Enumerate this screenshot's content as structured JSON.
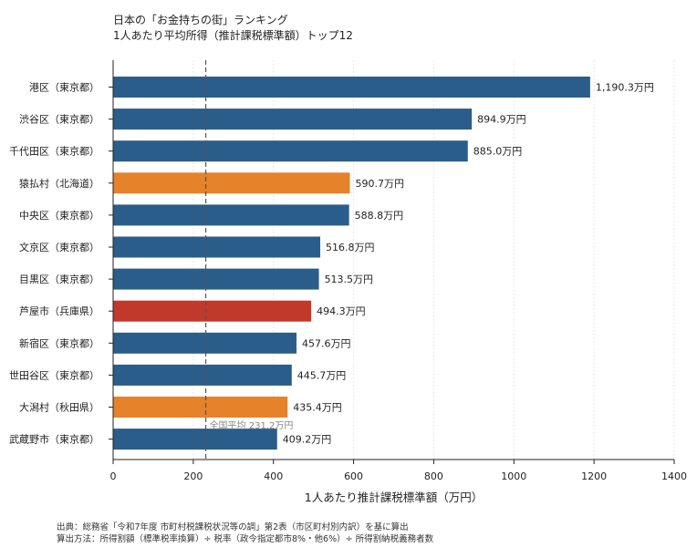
{
  "title": "日本の「お金持ちの街」ランキング",
  "subtitle": "1人あたり平均所得（推計課税標準額）トップ12",
  "chart_data": {
    "type": "bar",
    "orientation": "horizontal",
    "categories": [
      "港区（東京都）",
      "渋谷区（東京都）",
      "千代田区（東京都）",
      "猿払村（北海道）",
      "中央区（東京都）",
      "文京区（東京都）",
      "目黒区（東京都）",
      "芦屋市（兵庫県）",
      "新宿区（東京都）",
      "世田谷区（東京都）",
      "大潟村（秋田県）",
      "武蔵野市（東京都）"
    ],
    "values": [
      1190.3,
      894.9,
      885.0,
      590.7,
      588.8,
      516.8,
      513.5,
      494.3,
      457.6,
      445.7,
      435.4,
      409.2
    ],
    "value_labels": [
      "1,190.3万円",
      "894.9万円",
      "885.0万円",
      "590.7万円",
      "588.8万円",
      "516.8万円",
      "513.5万円",
      "494.3万円",
      "457.6万円",
      "445.7万円",
      "435.4万円",
      "409.2万円"
    ],
    "bar_colors": [
      "#2b5d8a",
      "#2b5d8a",
      "#2b5d8a",
      "#e6822a",
      "#2b5d8a",
      "#2b5d8a",
      "#2b5d8a",
      "#c0392b",
      "#2b5d8a",
      "#2b5d8a",
      "#e6822a",
      "#2b5d8a"
    ],
    "xlabel": "1人あたり推計課税標準額（万円）",
    "ylabel": "",
    "xlim": [
      0,
      1400
    ],
    "xticks": [
      0,
      200,
      400,
      600,
      800,
      1000,
      1200,
      1400
    ],
    "grid": "vertical dotted",
    "reference_line": {
      "value": 231.2,
      "label": "全国平均 231.2万円",
      "style": "dashed",
      "color": "#555555"
    }
  },
  "notes": [
    "出典：総務省「令和7年度 市町村税課税状況等の調」第2表（市区町村別内訳）を基に算出",
    "算出方法：所得割額（標準税率換算）÷ 税率（政令指定都市8%・他6%）÷ 所得割納税義務者数"
  ]
}
